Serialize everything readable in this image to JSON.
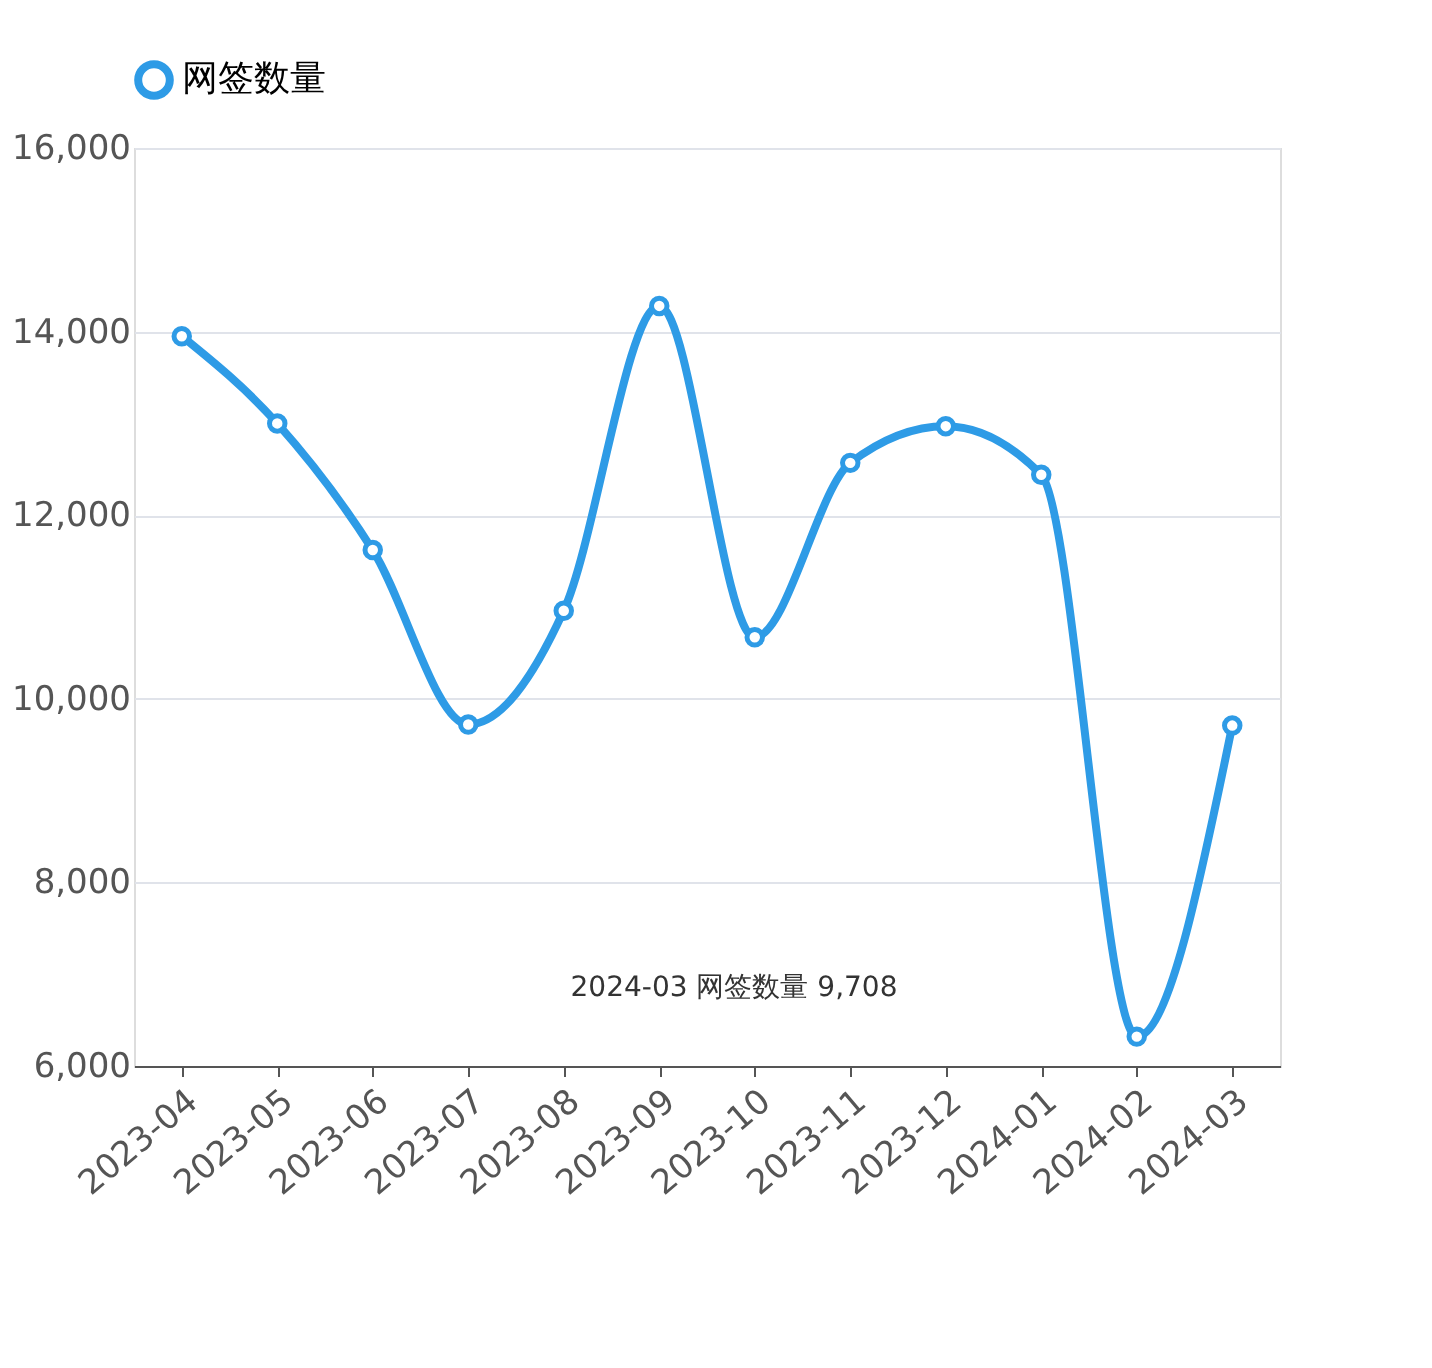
{
  "chart_data": {
    "type": "line",
    "categories": [
      "2023-04",
      "2023-05",
      "2023-06",
      "2023-07",
      "2023-08",
      "2023-09",
      "2023-10",
      "2023-11",
      "2023-12",
      "2024-01",
      "2024-02",
      "2024-03"
    ],
    "series": [
      {
        "name": "网签数量",
        "color": "#2e9be6",
        "values": [
          13950,
          13000,
          11620,
          9720,
          10960,
          14280,
          10670,
          12570,
          12970,
          12440,
          6320,
          9708
        ]
      }
    ],
    "ylim": [
      6000,
      16000
    ],
    "yticks": [
      {
        "value": 6000,
        "label": "6,000"
      },
      {
        "value": 8000,
        "label": "8,000"
      },
      {
        "value": 10000,
        "label": "10,000"
      },
      {
        "value": 12000,
        "label": "12,000"
      },
      {
        "value": 14000,
        "label": "14,000"
      },
      {
        "value": 16000,
        "label": "16,000"
      }
    ],
    "grid": "y",
    "legend": "top",
    "marker": "circle",
    "line_style": "solid",
    "annotations": [
      "2024-03 网签数量 9,708"
    ]
  }
}
